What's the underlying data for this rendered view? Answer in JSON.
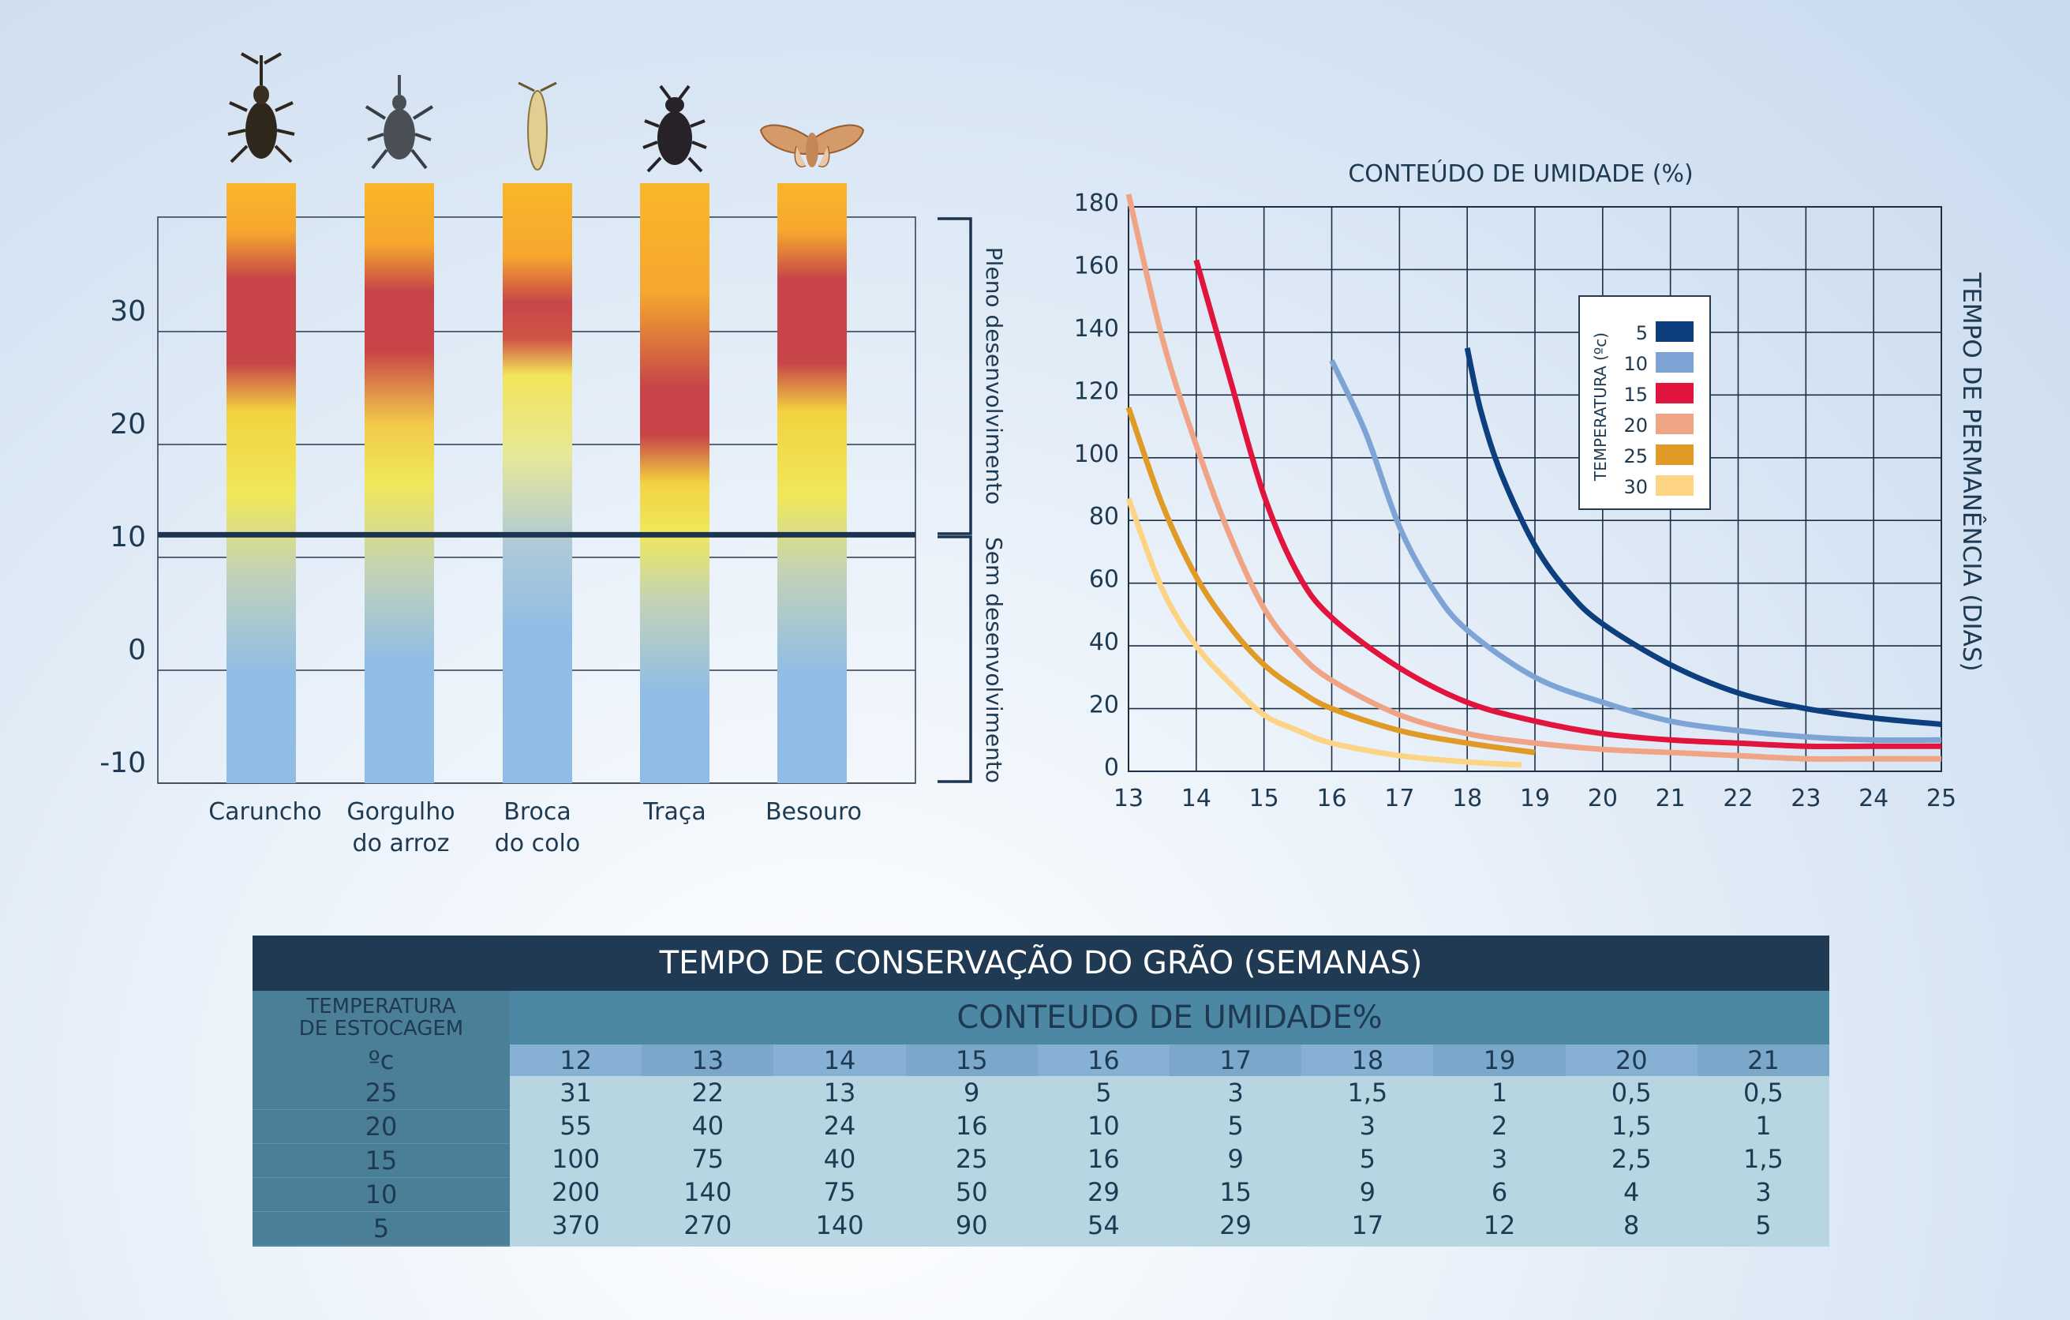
{
  "colors": {
    "grid": "#1e2e44",
    "threshold_line": "#1c3450",
    "series_5": "#0d3f7e",
    "series_10": "#7ea4d6",
    "series_15": "#e0143c",
    "series_20": "#f0a486",
    "series_25": "#e09a26",
    "series_30": "#fdd486"
  },
  "chart_data": [
    {
      "type": "bar",
      "description_axis": "temperature",
      "ylim": [
        -10,
        40
      ],
      "yticks": [
        30,
        20,
        10,
        0,
        -10
      ],
      "threshold": 12,
      "categories": [
        {
          "line1": "Caruncho",
          "line2": "",
          "icon": "weevil-icon"
        },
        {
          "line1": "Gorgulho",
          "line2": "do arroz",
          "icon": "rice-weevil-icon"
        },
        {
          "line1": "Broca",
          "line2": "do colo",
          "icon": "moth-larva-icon"
        },
        {
          "line1": "Traça",
          "line2": "",
          "icon": "beetle-icon"
        },
        {
          "line1": "Besouro",
          "line2": "",
          "icon": "moth-icon"
        }
      ],
      "bracket_labels": {
        "upper": "Pleno desenvolvimento",
        "lower": "Sem desenvolvimento"
      }
    },
    {
      "type": "line",
      "title": "CONTEÚDO DE UMIDADE (%)",
      "ylabel": "TEMPO DE PERMANÊNCIA (DIAS)",
      "xlim": [
        13,
        25
      ],
      "ylim": [
        0,
        180
      ],
      "xticks": [
        13,
        14,
        15,
        16,
        17,
        18,
        19,
        20,
        21,
        22,
        23,
        24,
        25
      ],
      "yticks": [
        0,
        20,
        40,
        60,
        80,
        100,
        120,
        140,
        160,
        180
      ],
      "legend_title": "TEMPERATURA (ºc)",
      "series": [
        {
          "name": "5",
          "x": [
            18,
            18.2,
            18.5,
            19,
            19.5,
            20,
            21,
            22,
            23,
            24,
            25
          ],
          "y": [
            135,
            115,
            95,
            72,
            57,
            47,
            34,
            25,
            20,
            17,
            15
          ]
        },
        {
          "name": "10",
          "x": [
            16,
            16.5,
            17,
            17.5,
            18,
            19,
            20,
            21,
            22,
            23,
            24,
            25
          ],
          "y": [
            131,
            108,
            78,
            58,
            45,
            30,
            22,
            16,
            13,
            11,
            10,
            10
          ]
        },
        {
          "name": "15",
          "x": [
            14,
            14.5,
            15,
            15.5,
            16,
            17,
            18,
            19,
            20,
            21,
            22,
            23,
            24,
            25
          ],
          "y": [
            163,
            125,
            88,
            63,
            49,
            33,
            22,
            16,
            12,
            10,
            9,
            8,
            8,
            8
          ]
        },
        {
          "name": "20",
          "x": [
            13,
            13.5,
            14,
            14.5,
            15,
            15.5,
            16,
            17,
            18,
            19,
            20,
            21,
            22,
            23,
            24,
            25
          ],
          "y": [
            184,
            138,
            104,
            75,
            52,
            38,
            29,
            18,
            12,
            9,
            7,
            6,
            5,
            4,
            4,
            4
          ]
        },
        {
          "name": "25",
          "x": [
            13,
            13.5,
            14,
            14.5,
            15,
            15.5,
            16,
            17,
            18,
            19
          ],
          "y": [
            116,
            85,
            62,
            46,
            34,
            26,
            20,
            13,
            9,
            6
          ]
        },
        {
          "name": "30",
          "x": [
            13,
            13.5,
            14,
            14.5,
            15,
            15.5,
            16,
            17,
            18,
            18.8
          ],
          "y": [
            87,
            58,
            40,
            28,
            18,
            13,
            9,
            5,
            3,
            2
          ]
        }
      ]
    },
    {
      "type": "table",
      "title": "TEMPO DE CONSERVAÇÃO DO GRÃO (SEMANAS)",
      "side_header_line1": "TEMPERATURA",
      "side_header_line2": "DE ESTOCAGEM",
      "column_header": "CONTEUDO DE UMIDADE%",
      "unit_label": "ºc",
      "columns": [
        "12",
        "13",
        "14",
        "15",
        "16",
        "17",
        "18",
        "19",
        "20",
        "21"
      ],
      "rows": [
        {
          "label": "25",
          "values": [
            "31",
            "22",
            "13",
            "9",
            "5",
            "3",
            "1,5",
            "1",
            "0,5",
            "0,5"
          ]
        },
        {
          "label": "20",
          "values": [
            "55",
            "40",
            "24",
            "16",
            "10",
            "5",
            "3",
            "2",
            "1,5",
            "1"
          ]
        },
        {
          "label": "15",
          "values": [
            "100",
            "75",
            "40",
            "25",
            "16",
            "9",
            "5",
            "3",
            "2,5",
            "1,5"
          ]
        },
        {
          "label": "10",
          "values": [
            "200",
            "140",
            "75",
            "50",
            "29",
            "15",
            "9",
            "6",
            "4",
            "3"
          ]
        },
        {
          "label": "5",
          "values": [
            "370",
            "270",
            "140",
            "90",
            "54",
            "29",
            "17",
            "12",
            "8",
            "5"
          ]
        }
      ]
    }
  ]
}
